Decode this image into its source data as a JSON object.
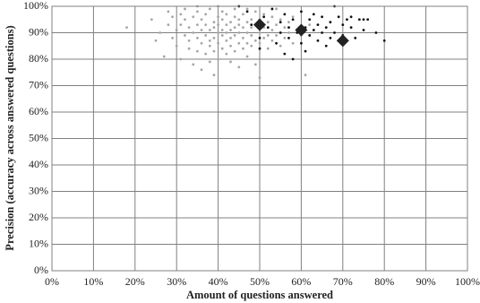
{
  "chart_data": {
    "type": "scatter",
    "x_label": "Amount of questions answered",
    "y_label": "Precision (accuracy across answered questions)",
    "xlim": [
      0,
      100
    ],
    "ylim": [
      0,
      100
    ],
    "xticks": [
      {
        "value": 0,
        "label": "0%"
      },
      {
        "value": 10,
        "label": "10%"
      },
      {
        "value": 20,
        "label": "20%"
      },
      {
        "value": 30,
        "label": "30%"
      },
      {
        "value": 40,
        "label": "40%"
      },
      {
        "value": 50,
        "label": "50%"
      },
      {
        "value": 60,
        "label": "60%"
      },
      {
        "value": 70,
        "label": "70%"
      },
      {
        "value": 80,
        "label": "80%"
      },
      {
        "value": 90,
        "label": "90%"
      },
      {
        "value": 100,
        "label": "100%"
      }
    ],
    "yticks": [
      {
        "value": 0,
        "label": "0%"
      },
      {
        "value": 10,
        "label": "10%"
      },
      {
        "value": 20,
        "label": "20%"
      },
      {
        "value": 30,
        "label": "30%"
      },
      {
        "value": 40,
        "label": "40%"
      },
      {
        "value": 50,
        "label": "50%"
      },
      {
        "value": 60,
        "label": "60%"
      },
      {
        "value": 70,
        "label": "70%"
      },
      {
        "value": 80,
        "label": "80%"
      },
      {
        "value": 90,
        "label": "90%"
      },
      {
        "value": 100,
        "label": "100%"
      }
    ],
    "grid": true,
    "series": [
      {
        "color": "#a6a6a6",
        "marker": "dot",
        "x": [
          18,
          24,
          25,
          26,
          27,
          28,
          28,
          29,
          29,
          30,
          30,
          31,
          31,
          31,
          32,
          32,
          32,
          33,
          33,
          33,
          34,
          34,
          34,
          35,
          35,
          35,
          35,
          36,
          36,
          36,
          36,
          37,
          37,
          37,
          37,
          38,
          38,
          38,
          38,
          38,
          39,
          39,
          39,
          39,
          39,
          40,
          40,
          40,
          40,
          40,
          41,
          41,
          41,
          41,
          41,
          42,
          42,
          42,
          42,
          42,
          43,
          43,
          43,
          43,
          43,
          44,
          44,
          44,
          44,
          44,
          45,
          45,
          45,
          45,
          45,
          46,
          46,
          46,
          46,
          47,
          47,
          47,
          47,
          48,
          48,
          48,
          48,
          49,
          49,
          49,
          49,
          50,
          50,
          50,
          50,
          51,
          51,
          51,
          52,
          52,
          52,
          53,
          53,
          53,
          54,
          54,
          54,
          55,
          55,
          55,
          56,
          56,
          57,
          57,
          58,
          58,
          59,
          60,
          61,
          62,
          35,
          40,
          45,
          47
        ],
        "values": [
          92,
          95,
          87,
          90,
          81,
          98,
          93,
          88,
          96,
          85,
          91,
          97,
          80,
          93,
          89,
          95,
          99,
          84,
          92,
          87,
          96,
          90,
          78,
          93,
          88,
          98,
          83,
          91,
          86,
          95,
          76,
          89,
          97,
          82,
          93,
          87,
          91,
          99,
          79,
          85,
          94,
          88,
          92,
          74,
          83,
          96,
          90,
          86,
          93,
          80,
          89,
          95,
          84,
          91,
          98,
          87,
          93,
          82,
          97,
          90,
          88,
          94,
          85,
          79,
          91,
          96,
          89,
          83,
          92,
          99,
          86,
          93,
          90,
          77,
          95,
          88,
          84,
          92,
          97,
          90,
          86,
          94,
          81,
          89,
          95,
          92,
          85,
          87,
          93,
          98,
          78,
          90,
          86,
          95,
          73,
          92,
          88,
          97,
          89,
          94,
          84,
          91,
          96,
          87,
          93,
          89,
          99,
          90,
          95,
          85,
          92,
          88,
          94,
          90,
          96,
          86,
          91,
          89,
          74,
          93,
          100,
          100,
          100,
          99
        ]
      },
      {
        "color": "#111111",
        "marker": "dot",
        "x": [
          45,
          47,
          48,
          50,
          50,
          51,
          52,
          53,
          54,
          55,
          55,
          56,
          56,
          57,
          57,
          58,
          58,
          59,
          60,
          60,
          61,
          61,
          62,
          62,
          63,
          63,
          64,
          64,
          65,
          65,
          66,
          66,
          67,
          67,
          68,
          68,
          69,
          70,
          70,
          71,
          72,
          72,
          73,
          74,
          75,
          76,
          78,
          80,
          75
        ],
        "values": [
          100,
          98,
          93,
          88,
          84,
          96,
          92,
          99,
          86,
          94,
          90,
          97,
          82,
          92,
          88,
          95,
          80,
          90,
          98,
          86,
          92,
          83,
          95,
          89,
          91,
          97,
          87,
          93,
          90,
          96,
          85,
          92,
          94,
          88,
          100,
          90,
          96,
          93,
          89,
          95,
          92,
          96,
          88,
          95,
          95,
          95,
          90,
          87,
          91
        ]
      },
      {
        "color": "#222222",
        "marker": "diamond",
        "x": [
          50,
          60,
          70
        ],
        "values": [
          93,
          91,
          87
        ]
      }
    ]
  }
}
